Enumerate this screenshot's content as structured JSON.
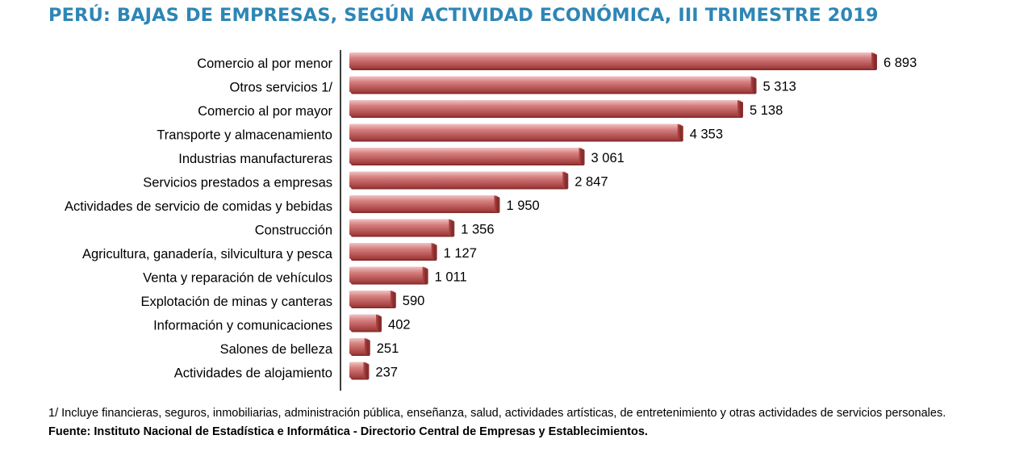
{
  "chart_data": {
    "type": "bar",
    "orientation": "horizontal",
    "title": "PERÚ: BAJAS DE EMPRESAS, SEGÚN ACTIVIDAD ECONÓMICA, III TRIMESTRE 2019",
    "categories": [
      "Comercio al por menor",
      "Otros servicios 1/",
      "Comercio al por mayor",
      "Transporte y almacenamiento",
      "Industrias manufactureras",
      "Servicios prestados a empresas",
      "Actividades de servicio de comidas y bebidas",
      "Construcción",
      "Agricultura, ganadería, silvicultura y pesca",
      "Venta y reparación de vehículos",
      "Explotación de minas y canteras",
      "Información y comunicaciones",
      "Salones de belleza",
      "Actividades de alojamiento"
    ],
    "values": [
      6893,
      5313,
      5138,
      4353,
      3061,
      2847,
      1950,
      1356,
      1127,
      1011,
      590,
      402,
      251,
      237
    ],
    "value_labels": [
      "6 893",
      "5 313",
      "5 138",
      "4 353",
      "3 061",
      "2 847",
      "1 950",
      "1 356",
      "1 127",
      "1 011",
      "590",
      "402",
      "251",
      "237"
    ],
    "xlabel": "",
    "ylabel": "",
    "xlim": [
      0,
      7000
    ],
    "grid": false,
    "bar_color": "#c0504d"
  },
  "footnote": "1/ Incluye financieras, seguros, inmobiliarias, administración pública, enseñanza, salud, actividades artísticas, de entretenimiento y otras actividades de servicios personales.",
  "source": "Fuente: Instituto Nacional de Estadística e Informática - Directorio Central de Empresas y Establecimientos."
}
